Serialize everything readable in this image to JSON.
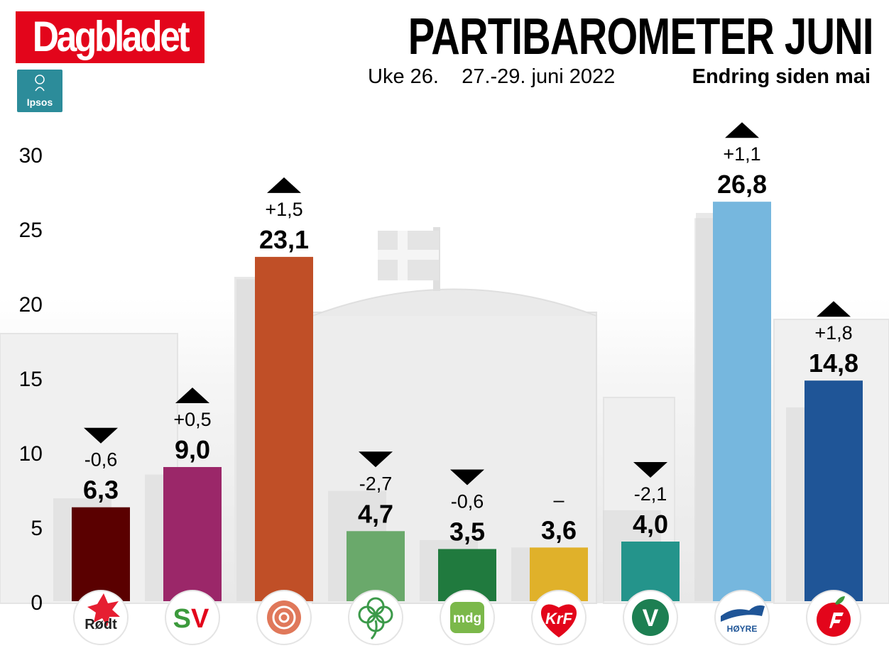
{
  "brand": {
    "name": "Dagbladet",
    "pollster": "Ipsos"
  },
  "header": {
    "title": "PARTIBAROMETER JUNI",
    "week": "Uke 26.",
    "dates": "27.-29. juni 2022",
    "change_label": "Endring siden mai"
  },
  "chart_data": {
    "type": "bar",
    "title": "PARTIBAROMETER JUNI",
    "xlabel": "",
    "ylabel": "",
    "ylim": [
      0,
      30
    ],
    "yticks": [
      0,
      5,
      10,
      15,
      20,
      25,
      30
    ],
    "grid": false,
    "categories": [
      "Rødt",
      "SV",
      "Ap",
      "Sp",
      "MDG",
      "KrF",
      "V",
      "Høyre",
      "FrP"
    ],
    "values": [
      6.3,
      9.0,
      23.1,
      4.7,
      3.5,
      3.6,
      4.0,
      26.8,
      14.8
    ],
    "value_labels": [
      "6,3",
      "9,0",
      "23,1",
      "4,7",
      "3,5",
      "3,6",
      "4,0",
      "26,8",
      "14,8"
    ],
    "changes": [
      -0.6,
      0.5,
      1.5,
      -2.7,
      -0.6,
      0,
      -2.1,
      1.1,
      1.8
    ],
    "change_labels": [
      "-0,6",
      "+0,5",
      "+1,5",
      "-2,7",
      "-0,6",
      "–",
      "-2,1",
      "+1,1",
      "+1,8"
    ],
    "previous_values": [
      6.9,
      8.5,
      21.6,
      7.4,
      4.1,
      3.6,
      6.1,
      25.7,
      13.0
    ],
    "colors": [
      "#5a0000",
      "#9b2769",
      "#c04f27",
      "#6aa96b",
      "#207a3e",
      "#e0b12a",
      "#24948b",
      "#76b7de",
      "#1f5597"
    ],
    "icons": [
      "rodt-logo-icon",
      "sv-logo-icon",
      "ap-rose-icon",
      "sp-clover-icon",
      "mdg-logo-icon",
      "krf-logo-icon",
      "venstre-logo-icon",
      "hoyre-logo-icon",
      "frp-apple-icon"
    ],
    "logo_texts": [
      "Rødt",
      "SV",
      "",
      "",
      "mdg",
      "KrF",
      "V",
      "HØYRE",
      ""
    ]
  }
}
